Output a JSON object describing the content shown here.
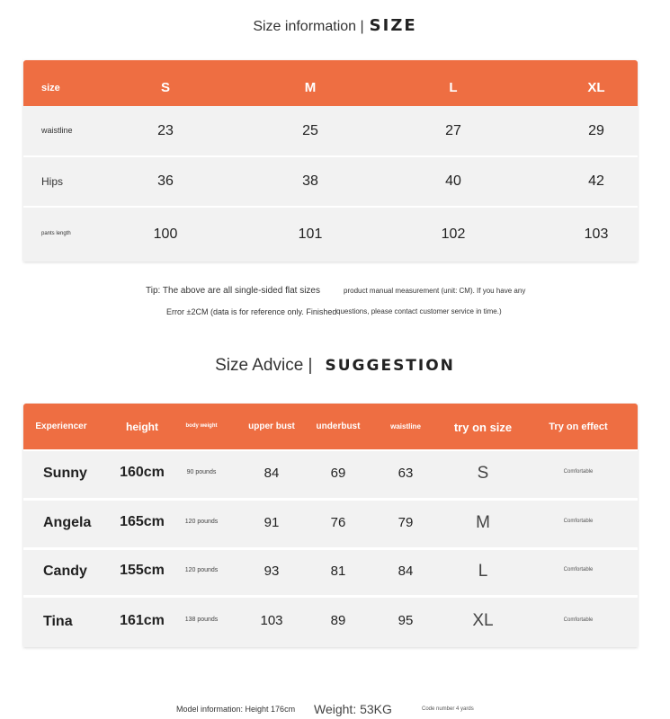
{
  "accent": "#EE6E42",
  "size_title": {
    "main": "Size information |",
    "en": "SIZE"
  },
  "size_table": {
    "headers": [
      "size",
      "S",
      "M",
      "L",
      "XL"
    ],
    "rows": [
      {
        "label": "waistline",
        "values": [
          "23",
          "25",
          "27",
          "29"
        ]
      },
      {
        "label": "Hips",
        "values": [
          "36",
          "38",
          "40",
          "42"
        ]
      },
      {
        "label": "pants length",
        "values": [
          "100",
          "101",
          "102",
          "103"
        ]
      }
    ]
  },
  "tips": [
    "Tip: The above are all single-sided flat sizes",
    "product manual measurement (unit: CM). If you have any",
    "Error ±2CM (data is for reference only. Finished",
    "questions, please contact customer service in time.)"
  ],
  "advice_title": {
    "main": "Size Advice |",
    "en": "SUGGESTION"
  },
  "advice_table": {
    "headers": [
      "Experiencer",
      "height",
      "body weight",
      "upper bust",
      "underbust",
      "waistline",
      "try on size",
      "Try on effect"
    ],
    "rows": [
      [
        "Sunny",
        "160cm",
        "90 pounds",
        "84",
        "69",
        "63",
        "S",
        "Comfortable"
      ],
      [
        "Angela",
        "165cm",
        "120 pounds",
        "91",
        "76",
        "79",
        "M",
        "Comfortable"
      ],
      [
        "Candy",
        "155cm",
        "120 pounds",
        "93",
        "81",
        "84",
        "L",
        "Comfortable"
      ],
      [
        "Tina",
        "161cm",
        "138 pounds",
        "103",
        "89",
        "95",
        "XL",
        "Comfortable"
      ]
    ]
  },
  "footer": {
    "model": "Model information: Height 176cm",
    "weight": "Weight: 53KG",
    "code": "Code number 4 yards"
  }
}
